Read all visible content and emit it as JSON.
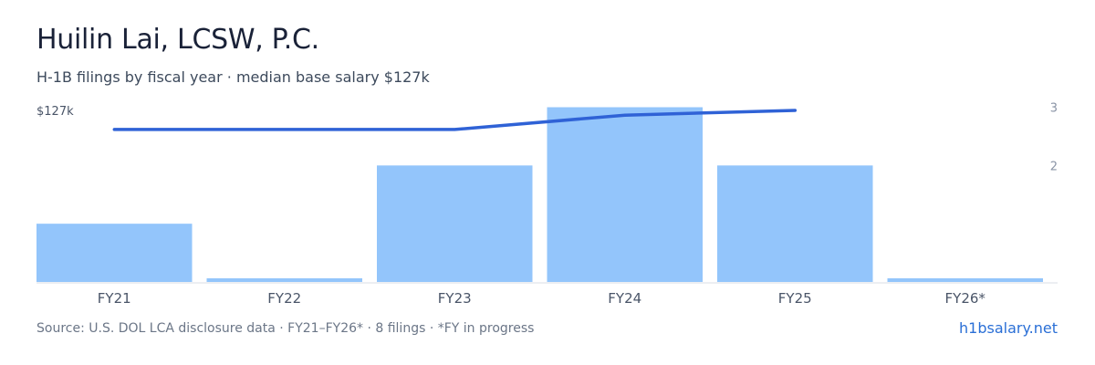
{
  "header": {
    "title": "Huilin Lai, LCSW, P.C.",
    "subtitle": "H-1B filings by fiscal year · median base salary $127k"
  },
  "footer": {
    "source": "Source: U.S. DOL LCA disclosure data · FY21–FY26* · 8 filings · *FY in progress",
    "brand": "h1bsalary.net"
  },
  "colors": {
    "bar": "#93c5fb",
    "line": "#2f62d6",
    "axis": "#d9dee5",
    "tick_text": "#8a94a6",
    "category_text": "#4a5568"
  },
  "chart_data": {
    "type": "bar",
    "categories": [
      "FY21",
      "FY22",
      "FY23",
      "FY24",
      "FY25",
      "FY26*"
    ],
    "series": [
      {
        "type": "bar",
        "axis": "right",
        "values": [
          1,
          0.03,
          2,
          3,
          2,
          0.03
        ]
      },
      {
        "type": "line",
        "axis": "left",
        "values": [
          119,
          119,
          119,
          125,
          127,
          null
        ]
      }
    ],
    "left_axis": {
      "tick_labels": [
        "$127k"
      ],
      "range": [
        55,
        127
      ]
    },
    "right_axis": {
      "tick_labels": [
        "2",
        "3"
      ],
      "range": [
        0,
        3
      ]
    }
  }
}
